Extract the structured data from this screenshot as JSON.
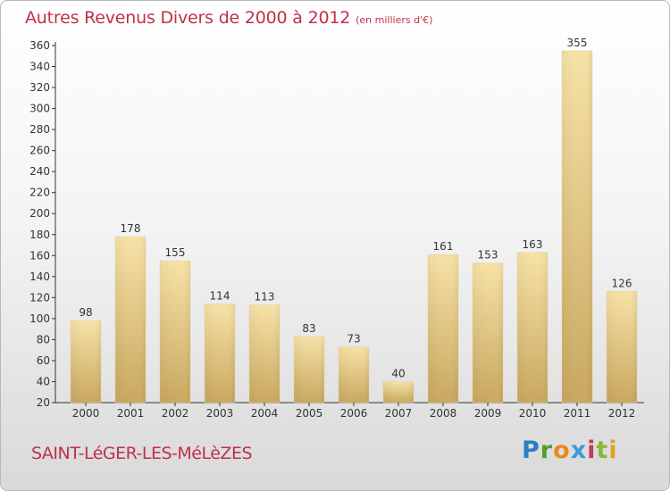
{
  "header": {
    "title": "Autres Revenus Divers de 2000 à 2012",
    "unit": "(en milliers d'€)"
  },
  "footer": {
    "commune": "SAINT-LéGER-LES-MéLèZES",
    "brand": "Proxiti"
  },
  "colors": {
    "title": "#c0304a",
    "bar_light": "#f6dea0",
    "bar_dark": "#c9a85f",
    "axis": "#333333"
  },
  "chart_data": {
    "type": "bar",
    "title": "Autres Revenus Divers de 2000 à 2012",
    "subtitle": "(en milliers d'€)",
    "xlabel": "",
    "ylabel": "",
    "categories": [
      "2000",
      "2001",
      "2002",
      "2003",
      "2004",
      "2005",
      "2006",
      "2007",
      "2008",
      "2009",
      "2010",
      "2011",
      "2012"
    ],
    "values": [
      98,
      178,
      155,
      114,
      113,
      83,
      73,
      40,
      161,
      153,
      163,
      355,
      126
    ],
    "ylim": [
      20,
      360
    ],
    "yticks": [
      20,
      40,
      60,
      80,
      100,
      120,
      140,
      160,
      180,
      200,
      220,
      240,
      260,
      280,
      300,
      320,
      340,
      360
    ],
    "grid": false,
    "legend": "none",
    "data_labels": true
  }
}
